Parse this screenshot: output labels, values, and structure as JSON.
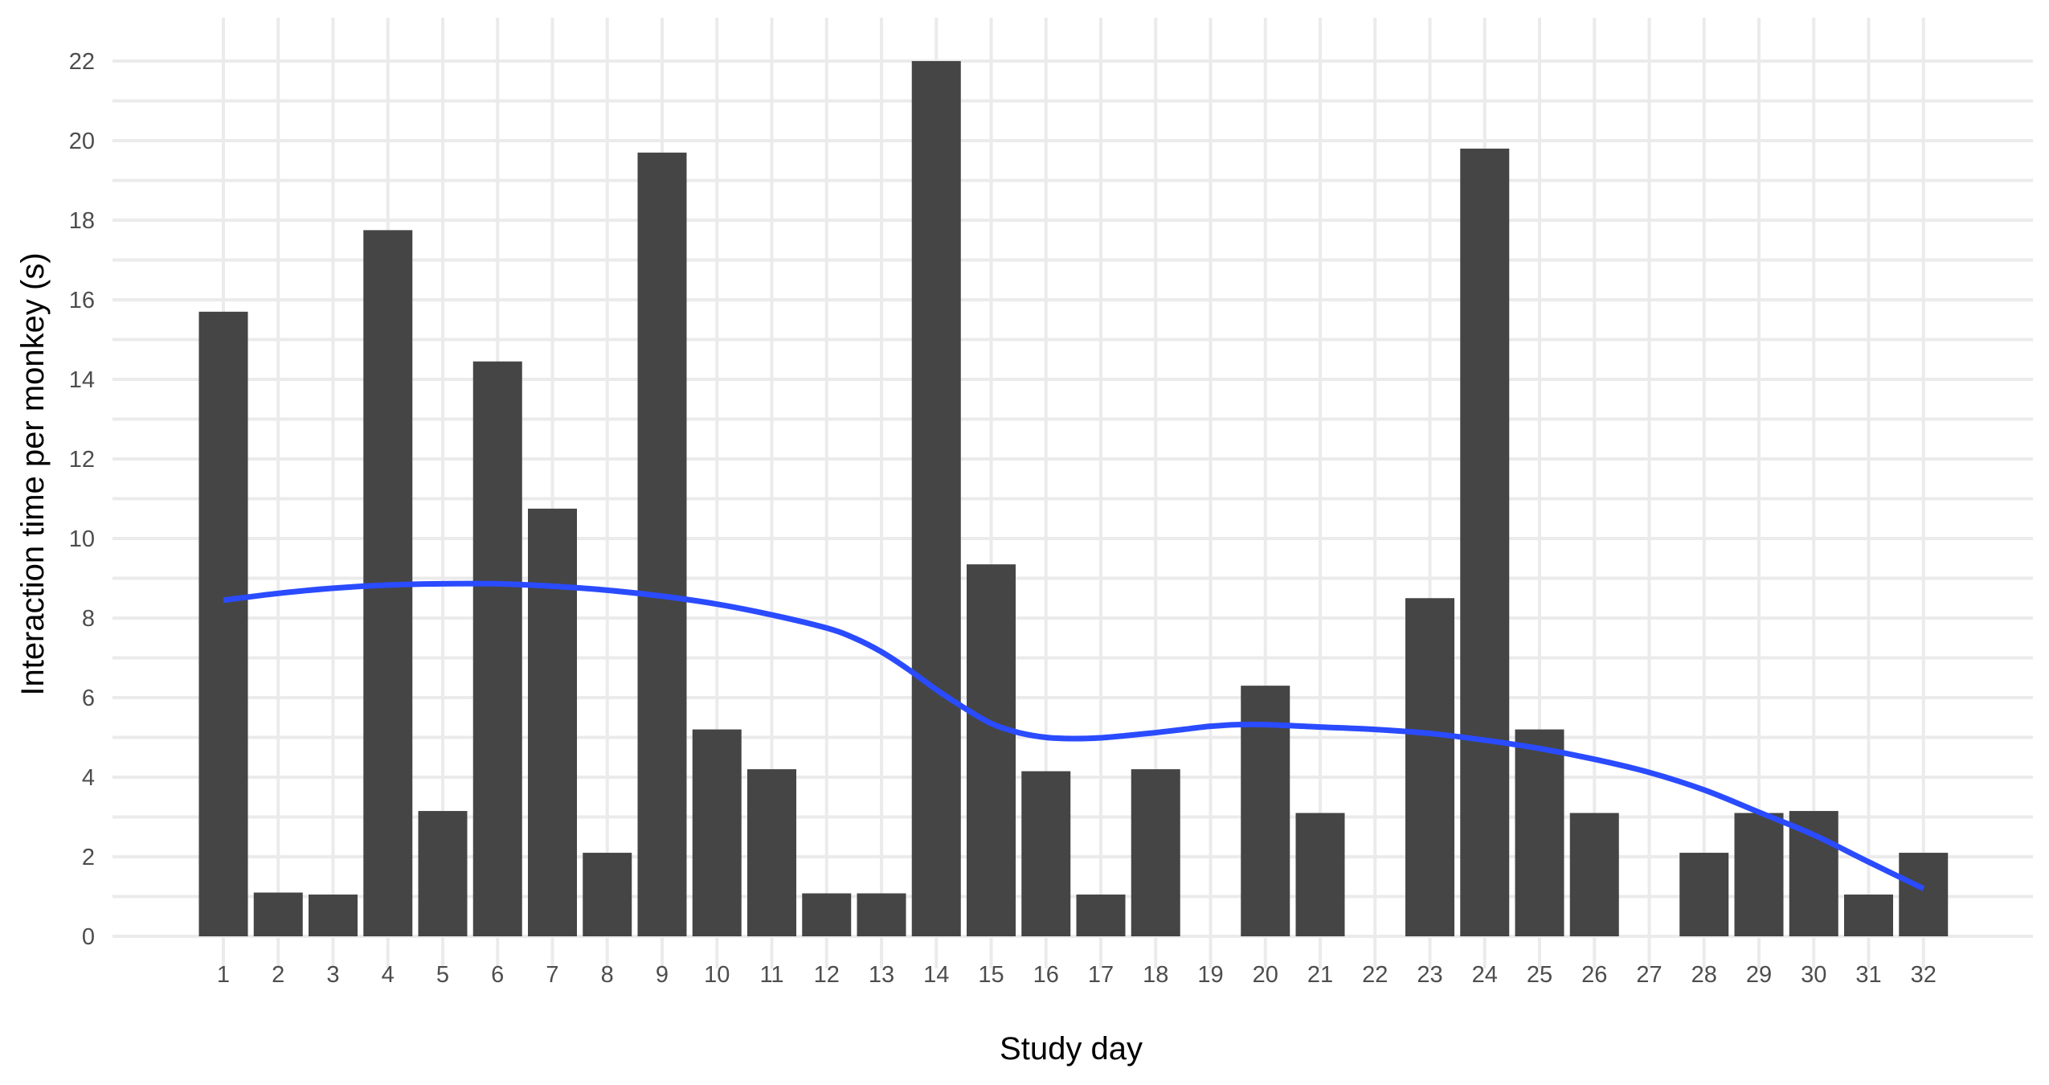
{
  "chart_data": {
    "type": "bar",
    "title": "",
    "xlabel": "Study day",
    "ylabel": "Interaction time per monkey (s)",
    "grid": true,
    "legend": "none",
    "ylim": [
      -1.2,
      23.1
    ],
    "yticks": [
      0,
      2,
      4,
      6,
      8,
      10,
      12,
      14,
      16,
      18,
      20,
      22
    ],
    "categories": [
      "1",
      "2",
      "3",
      "4",
      "5",
      "6",
      "7",
      "8",
      "9",
      "10",
      "11",
      "12",
      "13",
      "14",
      "15",
      "16",
      "17",
      "18",
      "19",
      "20",
      "21",
      "22",
      "23",
      "24",
      "25",
      "26",
      "27",
      "28",
      "29",
      "30",
      "31",
      "32"
    ],
    "values": [
      15.7,
      1.1,
      1.05,
      17.75,
      3.15,
      14.45,
      10.75,
      2.1,
      19.7,
      5.2,
      4.2,
      1.08,
      1.08,
      22.0,
      9.35,
      4.15,
      1.05,
      4.2,
      0,
      6.3,
      3.1,
      0,
      8.5,
      19.8,
      5.2,
      3.1,
      0,
      2.1,
      3.1,
      3.15,
      1.05,
      2.1
    ],
    "bar_color": "#454545",
    "smooth_line": {
      "color": "#2a4bff",
      "x": [
        1,
        2,
        3,
        4,
        5,
        6,
        7,
        8,
        9,
        10,
        11,
        12,
        12.5,
        13,
        13.5,
        14,
        14.5,
        15,
        15.5,
        16,
        16.5,
        17,
        17.5,
        18,
        18.5,
        19,
        19.5,
        20,
        21,
        22,
        23,
        24,
        25,
        26,
        27,
        28,
        29,
        30,
        31,
        32
      ],
      "y": [
        8.45,
        8.62,
        8.75,
        8.83,
        8.86,
        8.86,
        8.8,
        8.7,
        8.55,
        8.35,
        8.08,
        7.75,
        7.5,
        7.15,
        6.7,
        6.2,
        5.75,
        5.35,
        5.12,
        5.0,
        4.97,
        4.99,
        5.05,
        5.12,
        5.2,
        5.28,
        5.32,
        5.32,
        5.26,
        5.2,
        5.1,
        4.93,
        4.72,
        4.45,
        4.12,
        3.68,
        3.12,
        2.55,
        1.87,
        1.2
      ]
    }
  }
}
